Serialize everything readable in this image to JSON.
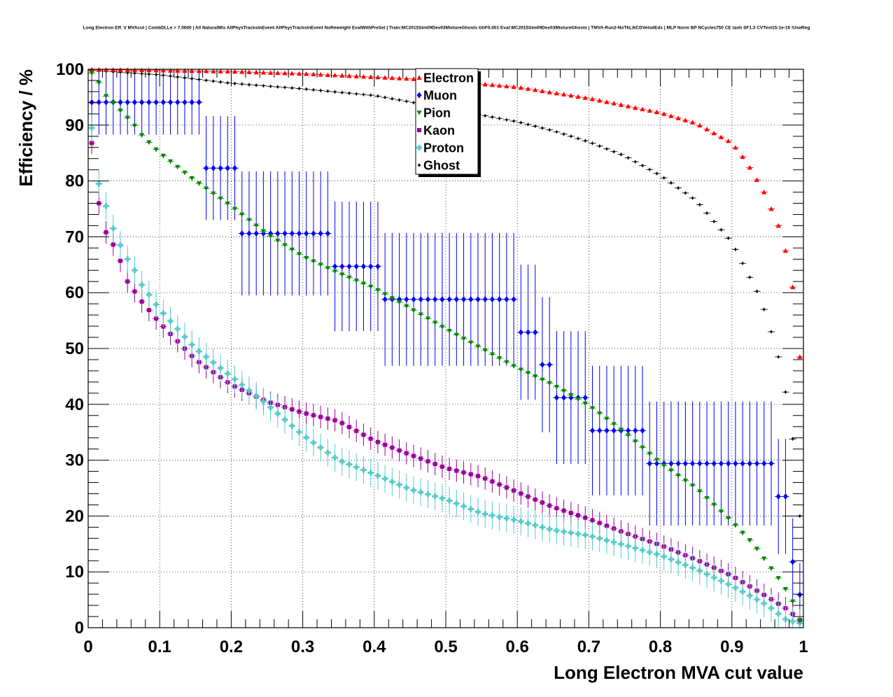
{
  "chart_data": {
    "type": "scatter",
    "title": "Long Electron Eff. V MVAcut | CombDLLe > 7.0000 | All NaturalMix AllPhysTracksInEvent:AllPhysTracksInEvent NoReweight EvalWithPreSel | Train:MC2015Sim09Dev03MixtureGhosts GhF0.001 Eval:MC2015Sim09Dev03MixtureGhosts | TMVA-Run2-NoTkLikCDVelodEdx | MLP Norm BP NCycles750 CE tanh SF1.3 CVTest15:1e-16 !UseReg",
    "xlabel": "Long Electron MVA cut value",
    "ylabel": "Efficiency / %",
    "xlim": [
      0,
      1
    ],
    "ylim": [
      0,
      100
    ],
    "x_ticks": [
      "0",
      "0.1",
      "0.2",
      "0.3",
      "0.4",
      "0.5",
      "0.6",
      "0.7",
      "0.8",
      "0.9",
      "1"
    ],
    "y_ticks": [
      "0",
      "10",
      "20",
      "30",
      "40",
      "50",
      "60",
      "70",
      "80",
      "90",
      "100"
    ],
    "grid": true,
    "legend_position": "top-center",
    "x_bins": 100,
    "series": [
      {
        "name": "Electron",
        "color": "#ff0000",
        "marker": "triangle-up",
        "keypoints": [
          [
            0.005,
            99.95
          ],
          [
            0.1,
            99.8
          ],
          [
            0.2,
            99.6
          ],
          [
            0.3,
            99.2
          ],
          [
            0.4,
            98.6
          ],
          [
            0.45,
            98.3
          ],
          [
            0.5,
            97.9
          ],
          [
            0.6,
            96.8
          ],
          [
            0.7,
            94.8
          ],
          [
            0.8,
            92.2
          ],
          [
            0.85,
            90.3
          ],
          [
            0.9,
            86.8
          ],
          [
            0.92,
            83.5
          ],
          [
            0.935,
            80.2
          ],
          [
            0.945,
            78.0
          ],
          [
            0.955,
            75.0
          ],
          [
            0.965,
            72.0
          ],
          [
            0.975,
            67.5
          ],
          [
            0.985,
            61.0
          ],
          [
            0.995,
            48.5
          ]
        ],
        "err": 0.1
      },
      {
        "name": "Muon",
        "color": "#0000ff",
        "marker": "diamond",
        "steps": [
          {
            "from": 0.0,
            "to": 0.16,
            "y": 94.1,
            "err": 5.8
          },
          {
            "from": 0.16,
            "to": 0.21,
            "y": 82.3,
            "err": 9.3
          },
          {
            "from": 0.21,
            "to": 0.34,
            "y": 70.6,
            "err": 11.1
          },
          {
            "from": 0.34,
            "to": 0.41,
            "y": 64.7,
            "err": 11.6
          },
          {
            "from": 0.41,
            "to": 0.6,
            "y": 58.8,
            "err": 11.9
          },
          {
            "from": 0.6,
            "to": 0.63,
            "y": 52.9,
            "err": 12.1
          },
          {
            "from": 0.63,
            "to": 0.65,
            "y": 47.1,
            "err": 12.1
          },
          {
            "from": 0.65,
            "to": 0.7,
            "y": 41.2,
            "err": 11.9
          },
          {
            "from": 0.7,
            "to": 0.78,
            "y": 35.3,
            "err": 11.6
          },
          {
            "from": 0.78,
            "to": 0.96,
            "y": 29.4,
            "err": 11.1
          },
          {
            "from": 0.96,
            "to": 0.98,
            "y": 23.5,
            "err": 10.3
          },
          {
            "from": 0.98,
            "to": 0.99,
            "y": 11.8,
            "err": 7.8
          },
          {
            "from": 0.99,
            "to": 1.0,
            "y": 5.9,
            "err": 5.7
          }
        ]
      },
      {
        "name": "Pion",
        "color": "#008800",
        "marker": "triangle-down",
        "keypoints": [
          [
            0.005,
            99.3
          ],
          [
            0.015,
            97.6
          ],
          [
            0.025,
            95.2
          ],
          [
            0.035,
            94.0
          ],
          [
            0.045,
            92.6
          ],
          [
            0.055,
            91.3
          ],
          [
            0.065,
            89.9
          ],
          [
            0.075,
            88.2
          ],
          [
            0.1,
            85.0
          ],
          [
            0.15,
            80.0
          ],
          [
            0.2,
            75.5
          ],
          [
            0.25,
            70.5
          ],
          [
            0.3,
            66.5
          ],
          [
            0.35,
            63.5
          ],
          [
            0.4,
            60.8
          ],
          [
            0.45,
            57.2
          ],
          [
            0.5,
            53.5
          ],
          [
            0.55,
            50.0
          ],
          [
            0.6,
            46.5
          ],
          [
            0.65,
            43.5
          ],
          [
            0.7,
            39.8
          ],
          [
            0.75,
            35.0
          ],
          [
            0.8,
            29.5
          ],
          [
            0.85,
            25.0
          ],
          [
            0.9,
            19.0
          ],
          [
            0.93,
            15.0
          ],
          [
            0.95,
            11.5
          ],
          [
            0.97,
            8.0
          ],
          [
            0.985,
            4.7
          ],
          [
            0.995,
            1.2
          ]
        ],
        "err": 0.4
      },
      {
        "name": "Kaon",
        "color": "#990099",
        "marker": "square",
        "keypoints": [
          [
            0.005,
            86.8
          ],
          [
            0.015,
            76.0
          ],
          [
            0.025,
            70.8
          ],
          [
            0.035,
            68.6
          ],
          [
            0.045,
            65.7
          ],
          [
            0.055,
            62.0
          ],
          [
            0.075,
            58.4
          ],
          [
            0.1,
            54.6
          ],
          [
            0.15,
            48.0
          ],
          [
            0.2,
            43.5
          ],
          [
            0.25,
            40.5
          ],
          [
            0.3,
            38.5
          ],
          [
            0.35,
            37.0
          ],
          [
            0.4,
            33.5
          ],
          [
            0.45,
            31.0
          ],
          [
            0.5,
            28.6
          ],
          [
            0.55,
            27.0
          ],
          [
            0.6,
            24.3
          ],
          [
            0.65,
            21.6
          ],
          [
            0.7,
            19.5
          ],
          [
            0.75,
            17.0
          ],
          [
            0.8,
            14.8
          ],
          [
            0.85,
            12.2
          ],
          [
            0.9,
            9.3
          ],
          [
            0.95,
            5.5
          ],
          [
            0.975,
            3.5
          ],
          [
            0.995,
            1.4
          ]
        ],
        "err": 2.0
      },
      {
        "name": "Proton",
        "color": "#55cccc",
        "marker": "cross",
        "keypoints": [
          [
            0.005,
            89.5
          ],
          [
            0.015,
            79.5
          ],
          [
            0.025,
            75.5
          ],
          [
            0.035,
            71.5
          ],
          [
            0.045,
            68.5
          ],
          [
            0.055,
            66.0
          ],
          [
            0.065,
            64.0
          ],
          [
            0.075,
            61.4
          ],
          [
            0.1,
            57.0
          ],
          [
            0.15,
            50.0
          ],
          [
            0.2,
            45.0
          ],
          [
            0.25,
            40.0
          ],
          [
            0.3,
            34.5
          ],
          [
            0.35,
            30.0
          ],
          [
            0.4,
            27.5
          ],
          [
            0.45,
            24.8
          ],
          [
            0.5,
            23.0
          ],
          [
            0.55,
            20.5
          ],
          [
            0.6,
            19.2
          ],
          [
            0.65,
            17.5
          ],
          [
            0.7,
            16.5
          ],
          [
            0.75,
            14.8
          ],
          [
            0.8,
            13.0
          ],
          [
            0.85,
            10.5
          ],
          [
            0.9,
            7.5
          ],
          [
            0.95,
            4.0
          ],
          [
            0.975,
            1.5
          ],
          [
            0.995,
            0.8
          ]
        ],
        "err": 2.5
      },
      {
        "name": "Ghost",
        "color": "#000000",
        "marker": "star",
        "keypoints": [
          [
            0.005,
            99.8
          ],
          [
            0.1,
            99.0
          ],
          [
            0.2,
            97.5
          ],
          [
            0.3,
            96.5
          ],
          [
            0.4,
            95.3
          ],
          [
            0.5,
            93.0
          ],
          [
            0.55,
            91.8
          ],
          [
            0.6,
            90.6
          ],
          [
            0.65,
            89.0
          ],
          [
            0.7,
            87.0
          ],
          [
            0.75,
            84.5
          ],
          [
            0.8,
            81.0
          ],
          [
            0.85,
            76.5
          ],
          [
            0.88,
            72.0
          ],
          [
            0.9,
            69.0
          ],
          [
            0.92,
            64.0
          ],
          [
            0.94,
            59.0
          ],
          [
            0.955,
            53.0
          ],
          [
            0.965,
            48.5
          ],
          [
            0.975,
            42.2
          ],
          [
            0.985,
            33.8
          ],
          [
            0.995,
            20.0
          ]
        ],
        "err": 0.15
      }
    ]
  }
}
